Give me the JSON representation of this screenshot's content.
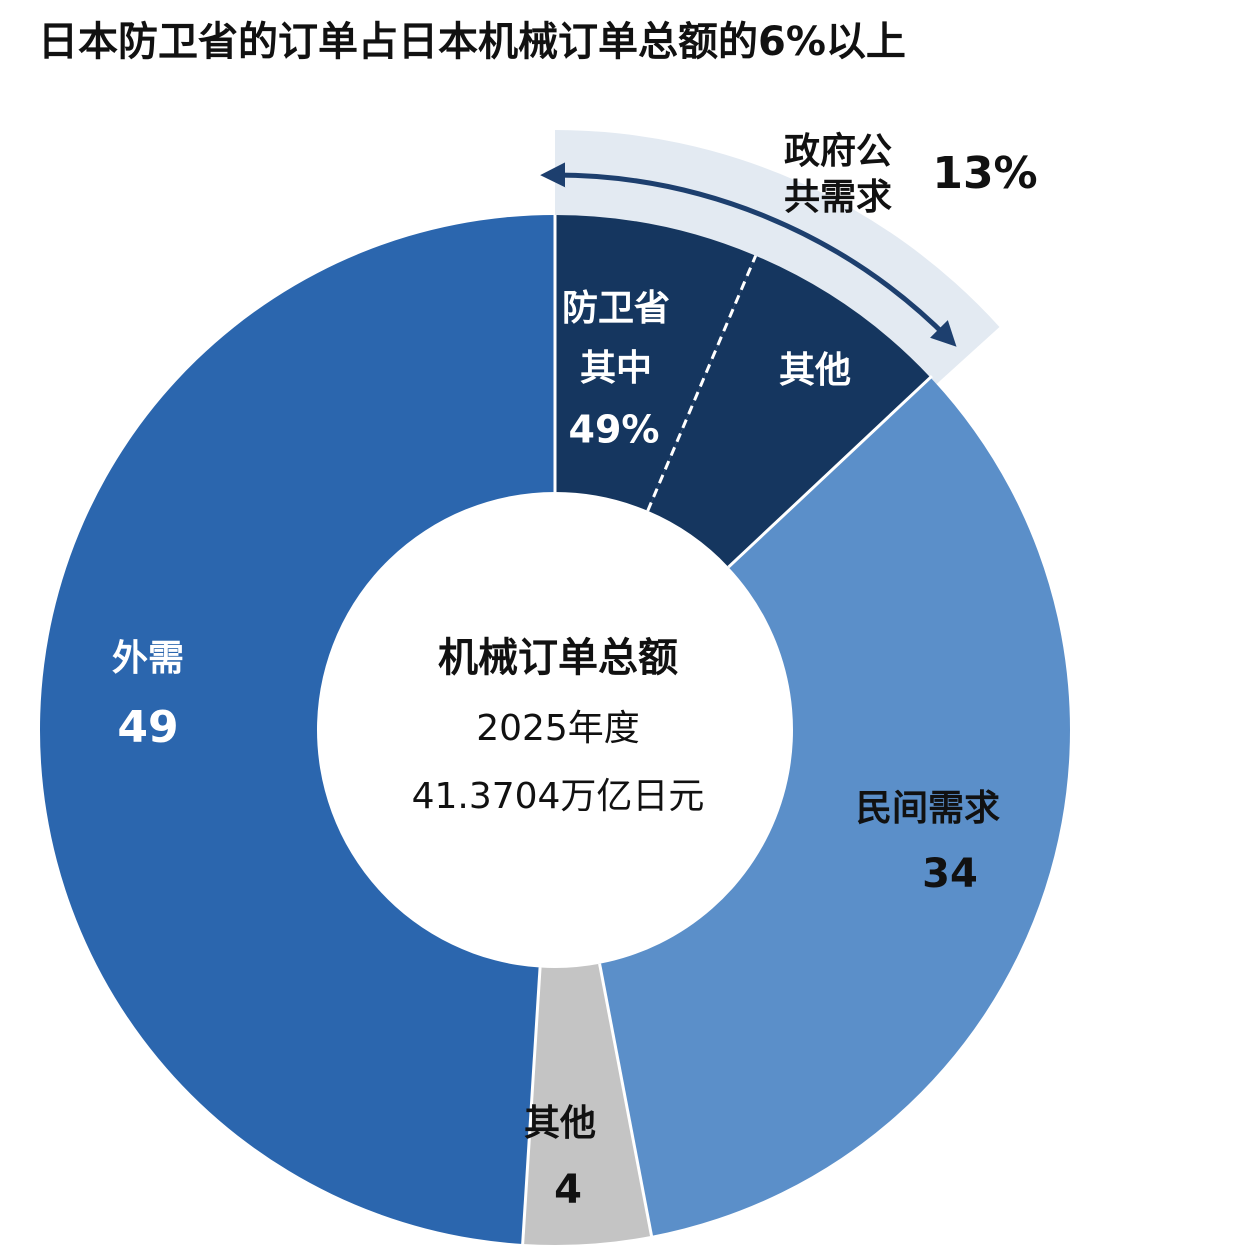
{
  "chart_data": {
    "type": "pie",
    "title": "日本防卫省的订单占日本机械订单总额的6%以上",
    "center_text": [
      "机械订单总额",
      "2025年度",
      "41.3704万亿日元"
    ],
    "categories": [
      "政府公共需求",
      "民间需求",
      "其他",
      "外需"
    ],
    "values": [
      13,
      34,
      4,
      49
    ],
    "value_labels": [
      "13%",
      "34",
      "4",
      "49"
    ],
    "colors": [
      "#15365f",
      "#5b8fc9",
      "#c4c4c4",
      "#2b66ae"
    ],
    "breakdown": {
      "categories": [
        "防卫省其中",
        "其他"
      ],
      "values": [
        49,
        51
      ],
      "value_labels": [
        "49%"
      ]
    }
  }
}
